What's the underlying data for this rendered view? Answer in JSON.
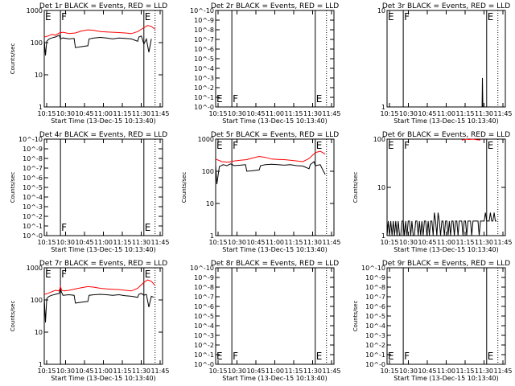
{
  "figure": {
    "shared_xticks": [
      "10:15",
      "10:30",
      "10:45",
      "11:00",
      "11:15",
      "11:30",
      "11:45"
    ],
    "xlabel": "Start Time (13-Dec-15 10:13:40)",
    "ylabel": "Counts/sec",
    "colors": {
      "events": "#000000",
      "lld": "#ff0000"
    }
  },
  "chart_data": [
    {
      "type": "line",
      "title": "Det 1r BLACK = Events, RED = LLD",
      "xlabel": "Start Time (13-Dec-15 10:13:40)",
      "ylabel": "Counts/sec",
      "xlim_minutes": [
        0,
        95
      ],
      "ylim": [
        1,
        1000
      ],
      "yscale": "log",
      "yticklabels": [
        "1",
        "10",
        "100",
        "1000"
      ],
      "ytick_values": [
        1,
        10,
        100,
        1000
      ],
      "marker_lines": [
        {
          "label": "E",
          "x_minutes": 0,
          "style": "solid"
        },
        {
          "label": "F",
          "x_minutes": 13,
          "style": "solid"
        },
        {
          "label": "E",
          "x_minutes": 80,
          "style": "solid"
        },
        {
          "label": "",
          "x_minutes": 89,
          "style": "dotted"
        }
      ],
      "series": [
        {
          "name": "LLD",
          "color": "#ff0000",
          "x_minutes": [
            0,
            3,
            6,
            9,
            12,
            15,
            20,
            25,
            30,
            35,
            40,
            45,
            50,
            55,
            60,
            65,
            70,
            75,
            80,
            83,
            86,
            89
          ],
          "values": [
            150,
            160,
            180,
            170,
            200,
            210,
            190,
            200,
            230,
            250,
            240,
            220,
            215,
            210,
            205,
            200,
            190,
            220,
            290,
            340,
            320,
            260
          ]
        },
        {
          "name": "Events",
          "color": "#000000",
          "x_minutes": [
            0,
            1,
            2,
            3,
            4,
            6,
            9,
            12,
            13,
            15,
            20,
            24,
            25,
            30,
            35,
            36,
            40,
            45,
            50,
            55,
            60,
            65,
            70,
            75,
            76,
            78,
            80,
            82,
            84,
            86
          ],
          "values": [
            120,
            40,
            110,
            120,
            130,
            140,
            150,
            170,
            130,
            140,
            130,
            135,
            70,
            75,
            80,
            130,
            140,
            145,
            140,
            130,
            140,
            135,
            130,
            110,
            150,
            160,
            90,
            130,
            50,
            130
          ]
        }
      ]
    },
    {
      "type": "line",
      "title": "Det 2r BLACK = Events, RED = LLD",
      "xlabel": "Start Time (13-Dec-15 10:13:40)",
      "ylabel": "",
      "xlim_minutes": [
        0,
        95
      ],
      "ylim": [
        1,
        1e-10
      ],
      "yscale": "log",
      "yticklabels": [
        "10^-0",
        "10^-1",
        "10^-2",
        "10^-3",
        "10^-4",
        "10^-5",
        "10^-6",
        "10^-7",
        "10^-8",
        "10^-9",
        "10^-10"
      ],
      "marker_lines": [
        {
          "label": "E",
          "x_minutes": 0,
          "style": "solid"
        },
        {
          "label": "F",
          "x_minutes": 13,
          "style": "solid"
        },
        {
          "label": "E",
          "x_minutes": 80,
          "style": "solid"
        },
        {
          "label": "",
          "x_minutes": 89,
          "style": "dotted"
        }
      ],
      "series": []
    },
    {
      "type": "line",
      "title": "Det 3r BLACK = Events, RED = LLD",
      "xlabel": "Start Time (13-Dec-15 10:13:40)",
      "ylabel": "",
      "xlim_minutes": [
        0,
        95
      ],
      "ylim": [
        1,
        10
      ],
      "yscale": "log",
      "yticklabels": [
        "1",
        "10"
      ],
      "ytick_values": [
        1,
        10
      ],
      "marker_lines": [
        {
          "label": "E",
          "x_minutes": 0,
          "style": "solid"
        },
        {
          "label": "F",
          "x_minutes": 13,
          "style": "solid"
        },
        {
          "label": "E",
          "x_minutes": 80,
          "style": "solid"
        },
        {
          "label": "",
          "x_minutes": 89,
          "style": "dotted"
        }
      ],
      "series": [
        {
          "name": "Events",
          "color": "#000000",
          "x_minutes": [
            76,
            76.3,
            76.6,
            77,
            77.4,
            77.8
          ],
          "values": [
            1,
            1,
            2,
            1,
            1,
            1
          ]
        }
      ]
    },
    {
      "type": "line",
      "title": "Det 4r BLACK = Events, RED = LLD",
      "xlabel": "Start Time (13-Dec-15 10:13:40)",
      "ylabel": "Counts/sec",
      "xlim_minutes": [
        0,
        95
      ],
      "ylim": [
        1,
        1e-10
      ],
      "yscale": "log",
      "yticklabels": [
        "10^-0",
        "10^-1",
        "10^-2",
        "10^-3",
        "10^-4",
        "10^-5",
        "10^-6",
        "10^-7",
        "10^-8",
        "10^-9",
        "10^-10"
      ],
      "marker_lines": [
        {
          "label": "",
          "x_minutes": 0,
          "style": "solid"
        },
        {
          "label": "F",
          "x_minutes": 13,
          "style": "solid"
        },
        {
          "label": "E",
          "x_minutes": 80,
          "style": "solid"
        },
        {
          "label": "",
          "x_minutes": 89,
          "style": "dotted"
        }
      ],
      "series": []
    },
    {
      "type": "line",
      "title": "Det 5r BLACK = Events, RED = LLD",
      "xlabel": "Start Time (13-Dec-15 10:13:40)",
      "ylabel": "Counts/sec",
      "xlim_minutes": [
        0,
        95
      ],
      "ylim": [
        1,
        1000
      ],
      "yscale": "log",
      "yticklabels": [
        "1",
        "10",
        "100",
        "1000"
      ],
      "ytick_values": [
        1,
        10,
        100,
        1000
      ],
      "marker_lines": [
        {
          "label": "E",
          "x_minutes": 0,
          "style": "solid"
        },
        {
          "label": "F",
          "x_minutes": 13,
          "style": "solid"
        },
        {
          "label": "E",
          "x_minutes": 80,
          "style": "solid"
        },
        {
          "label": "",
          "x_minutes": 89,
          "style": "dotted"
        }
      ],
      "series": [
        {
          "name": "LLD",
          "color": "#ff0000",
          "x_minutes": [
            0,
            5,
            10,
            15,
            20,
            25,
            30,
            35,
            40,
            45,
            50,
            55,
            60,
            65,
            70,
            75,
            80,
            84,
            88
          ],
          "values": [
            240,
            200,
            190,
            210,
            220,
            230,
            260,
            290,
            270,
            240,
            235,
            230,
            220,
            210,
            200,
            250,
            380,
            420,
            340
          ]
        },
        {
          "name": "Events",
          "color": "#000000",
          "x_minutes": [
            0,
            1,
            3,
            6,
            9,
            12,
            15,
            20,
            24,
            25,
            30,
            35,
            36,
            40,
            45,
            50,
            55,
            60,
            65,
            70,
            75,
            76,
            79,
            80,
            84,
            86,
            88
          ],
          "values": [
            150,
            40,
            140,
            160,
            150,
            170,
            150,
            155,
            160,
            100,
            105,
            110,
            150,
            160,
            165,
            160,
            155,
            160,
            150,
            145,
            120,
            160,
            200,
            150,
            160,
            110,
            80
          ]
        }
      ]
    },
    {
      "type": "line",
      "title": "Det 6r BLACK = Events, RED = LLD",
      "xlabel": "Start Time (13-Dec-15 10:13:40)",
      "ylabel": "Counts/sec",
      "xlim_minutes": [
        0,
        95
      ],
      "ylim": [
        1,
        100
      ],
      "yscale": "log",
      "yticklabels": [
        "1",
        "10",
        "100"
      ],
      "ytick_values": [
        1,
        10,
        100
      ],
      "marker_lines": [
        {
          "label": "E",
          "x_minutes": 0,
          "style": "solid"
        },
        {
          "label": "F",
          "x_minutes": 13,
          "style": "solid"
        },
        {
          "label": "E",
          "x_minutes": 80,
          "style": "solid"
        },
        {
          "label": "",
          "x_minutes": 89,
          "style": "dotted"
        }
      ],
      "series": [
        {
          "name": "LLD",
          "color": "#ff0000",
          "x_minutes": [
            60,
            63,
            66,
            69,
            72,
            75
          ],
          "values": [
            95,
            100,
            98,
            100,
            97,
            96
          ]
        },
        {
          "name": "Events",
          "color": "#000000",
          "x_minutes": [
            0,
            1,
            2,
            3,
            4,
            5,
            6,
            7,
            8,
            9,
            10,
            11,
            12,
            13,
            14,
            15,
            16,
            17,
            18,
            19,
            20,
            21,
            22,
            23,
            24,
            25,
            26,
            27,
            28,
            29,
            30,
            31,
            32,
            33,
            34,
            35,
            36,
            37,
            38,
            39,
            40,
            41,
            42,
            43,
            44,
            45,
            46,
            47,
            48,
            49,
            50,
            51,
            52,
            53,
            54,
            55,
            56,
            57,
            58,
            59,
            60,
            61,
            62,
            63,
            64,
            65,
            66,
            67,
            68,
            69,
            70,
            71,
            72,
            73,
            74,
            75,
            76,
            77,
            78,
            79,
            80,
            81,
            82,
            83,
            84,
            85,
            86,
            87,
            88
          ],
          "values": [
            1,
            2,
            1,
            2,
            1,
            2,
            1,
            2,
            1,
            2,
            1,
            1,
            2,
            2,
            1,
            2,
            1,
            2,
            2,
            1,
            2,
            1,
            1,
            2,
            2,
            1,
            2,
            1,
            2,
            1,
            2,
            2,
            1,
            2,
            1,
            2,
            2,
            1,
            3,
            2,
            1,
            3,
            2,
            1,
            2,
            2,
            1,
            2,
            2,
            1,
            2,
            1,
            2,
            2,
            1,
            2,
            2,
            1,
            2,
            2,
            2,
            1,
            2,
            2,
            1,
            2,
            2,
            2,
            1,
            2,
            2,
            2,
            2,
            2,
            1,
            2,
            2,
            2,
            2,
            3,
            2,
            2,
            2,
            3,
            2,
            2,
            3,
            2,
            2
          ]
        }
      ]
    },
    {
      "type": "line",
      "title": "Det 7r BLACK = Events, RED = LLD",
      "xlabel": "Start Time (13-Dec-15 10:13:40)",
      "ylabel": "Counts/sec",
      "xlim_minutes": [
        0,
        95
      ],
      "ylim": [
        1,
        1000
      ],
      "yscale": "log",
      "yticklabels": [
        "1",
        "10",
        "100",
        "1000"
      ],
      "ytick_values": [
        1,
        10,
        100,
        1000
      ],
      "marker_lines": [
        {
          "label": "E",
          "x_minutes": 0,
          "style": "solid"
        },
        {
          "label": "F",
          "x_minutes": 13,
          "style": "solid"
        },
        {
          "label": "E",
          "x_minutes": 80,
          "style": "solid"
        },
        {
          "label": "",
          "x_minutes": 89,
          "style": "dotted"
        }
      ],
      "series": [
        {
          "name": "LLD",
          "color": "#ff0000",
          "x_minutes": [
            0,
            3,
            6,
            9,
            12,
            13,
            14,
            16,
            20,
            25,
            30,
            35,
            40,
            45,
            50,
            55,
            60,
            65,
            70,
            75,
            80,
            83,
            86,
            89
          ],
          "values": [
            150,
            160,
            180,
            200,
            190,
            260,
            200,
            190,
            200,
            220,
            240,
            260,
            250,
            230,
            220,
            215,
            210,
            200,
            190,
            230,
            350,
            420,
            380,
            280
          ]
        },
        {
          "name": "Events",
          "color": "#000000",
          "x_minutes": [
            0,
            1,
            2,
            3,
            4,
            6,
            9,
            12,
            13,
            15,
            20,
            24,
            25,
            30,
            35,
            36,
            40,
            45,
            50,
            55,
            60,
            65,
            70,
            75,
            76,
            78,
            80,
            82,
            84,
            86,
            88
          ],
          "values": [
            120,
            20,
            110,
            120,
            130,
            140,
            150,
            160,
            210,
            140,
            145,
            140,
            80,
            85,
            90,
            140,
            145,
            150,
            145,
            140,
            145,
            135,
            130,
            120,
            150,
            160,
            140,
            150,
            60,
            130,
            120
          ]
        }
      ]
    },
    {
      "type": "line",
      "title": "Det 8r BLACK = Events, RED = LLD",
      "xlabel": "Start Time (13-Dec-15 10:13:40)",
      "ylabel": "",
      "xlim_minutes": [
        0,
        95
      ],
      "ylim": [
        1,
        1e-10
      ],
      "yscale": "log",
      "yticklabels": [
        "10^-0",
        "10^-1",
        "10^-2",
        "10^-3",
        "10^-4",
        "10^-5",
        "10^-6",
        "10^-7",
        "10^-8",
        "10^-9",
        "10^-10"
      ],
      "marker_lines": [
        {
          "label": "E",
          "x_minutes": 0,
          "style": "solid"
        },
        {
          "label": "F",
          "x_minutes": 13,
          "style": "solid"
        },
        {
          "label": "E",
          "x_minutes": 80,
          "style": "solid"
        },
        {
          "label": "",
          "x_minutes": 89,
          "style": "dotted"
        }
      ],
      "series": []
    },
    {
      "type": "line",
      "title": "Det 9r BLACK = Events, RED = LLD",
      "xlabel": "Start Time (13-Dec-15 10:13:40)",
      "ylabel": "Counts/sec",
      "xlim_minutes": [
        0,
        95
      ],
      "ylim": [
        1,
        1e-10
      ],
      "yscale": "log",
      "yticklabels": [
        "10^-0",
        "10^-1",
        "10^-2",
        "10^-3",
        "10^-4",
        "10^-5",
        "10^-6",
        "10^-7",
        "10^-8",
        "10^-9",
        "10^-10"
      ],
      "marker_lines": [
        {
          "label": "E",
          "x_minutes": 0,
          "style": "solid"
        },
        {
          "label": "F",
          "x_minutes": 13,
          "style": "solid"
        },
        {
          "label": "E",
          "x_minutes": 80,
          "style": "solid"
        },
        {
          "label": "",
          "x_minutes": 89,
          "style": "dotted"
        }
      ],
      "series": []
    }
  ]
}
